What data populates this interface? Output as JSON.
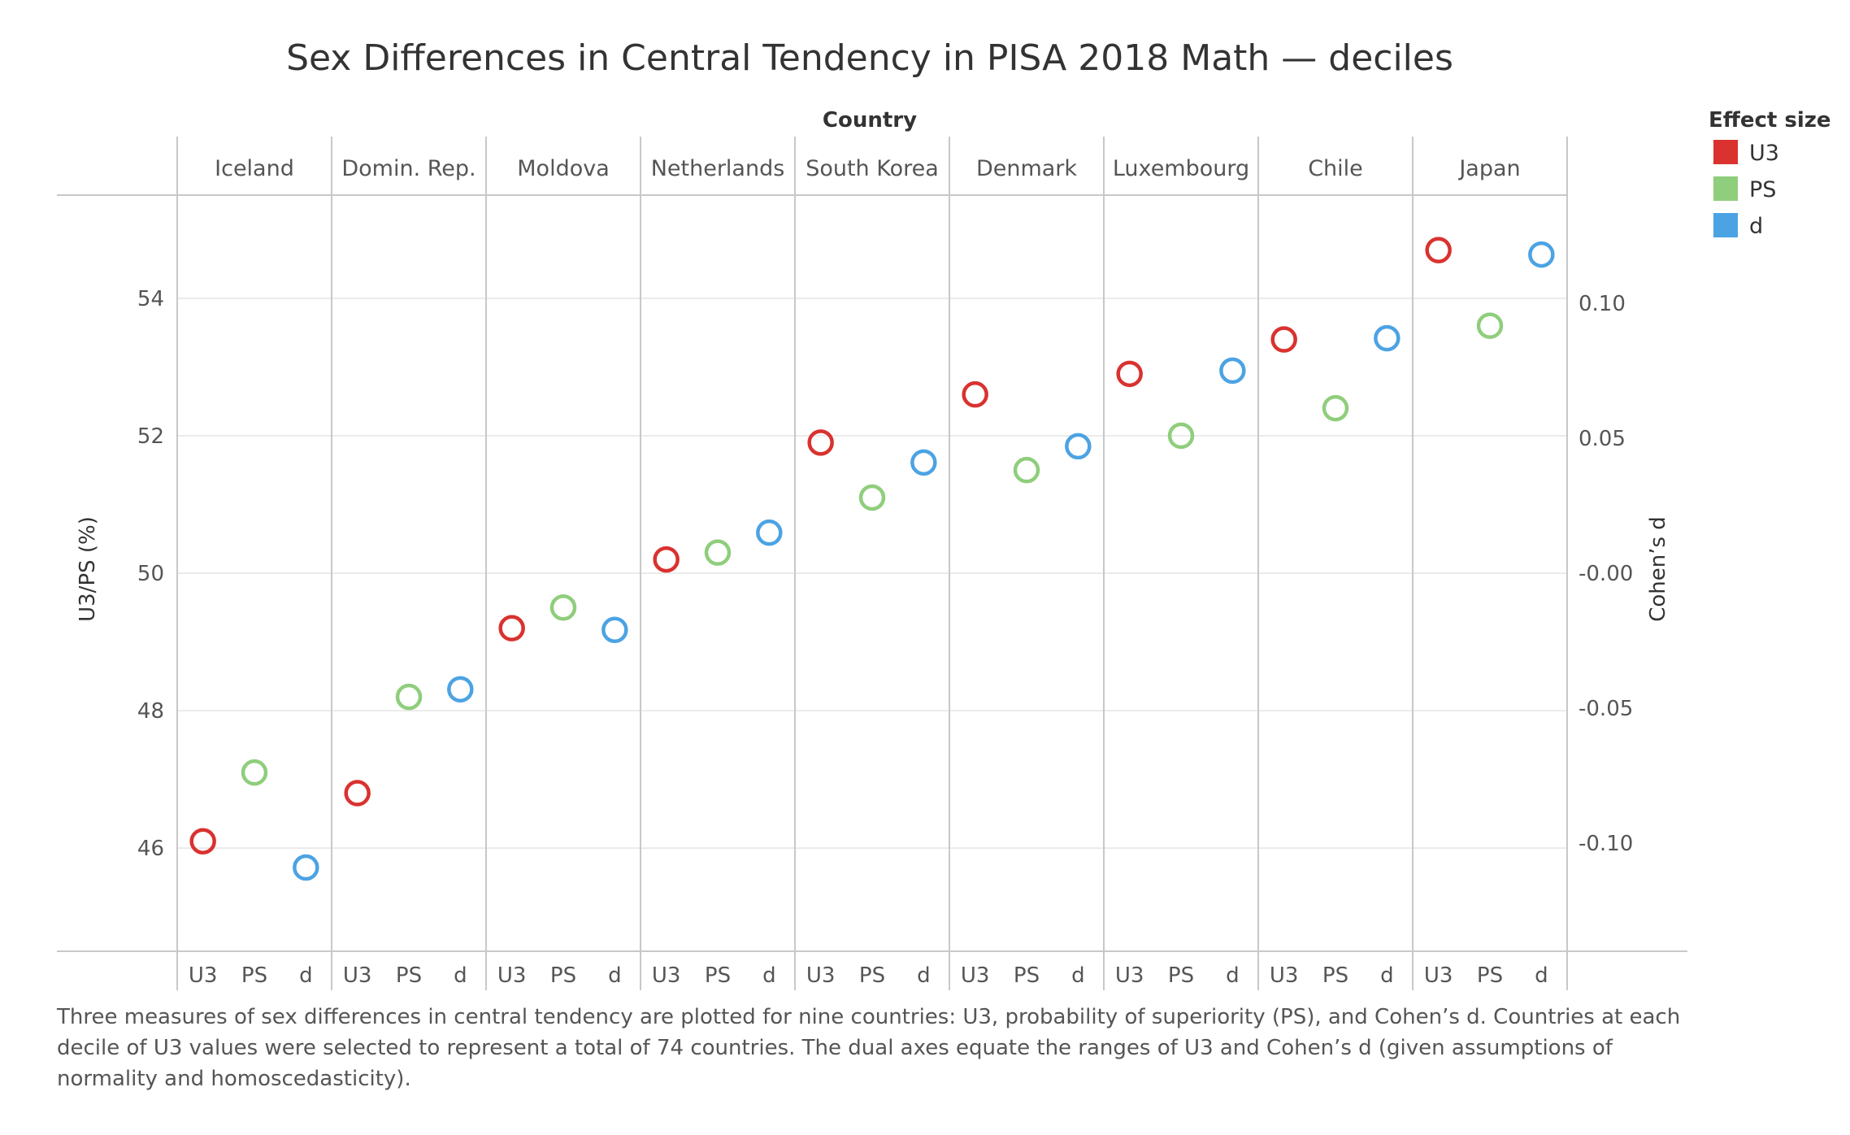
{
  "chart_data": {
    "type": "scatter",
    "title": "Sex Differences in Central Tendency in PISA 2018 Math — deciles",
    "column_header": "Country",
    "countries": [
      "Iceland",
      "Domin. Rep.",
      "Moldova",
      "Netherlands",
      "South Korea",
      "Denmark",
      "Luxembourg",
      "Chile",
      "Japan"
    ],
    "measures": [
      "U3",
      "PS",
      "d"
    ],
    "ylabel_left": "U3/PS (%)",
    "ylabel_right": "Cohen’s d",
    "ylim_left": [
      44.5,
      55.5
    ],
    "ylim_right": [
      -0.14,
      0.14
    ],
    "yticks_left": [
      46,
      48,
      50,
      52,
      54
    ],
    "yticks_right": [
      -0.1,
      -0.05,
      0.0,
      0.05,
      0.1
    ],
    "yticklabels_right": [
      "-0.10",
      "-0.05",
      "-0.00",
      "0.05",
      "0.10"
    ],
    "grid": true,
    "legend_position": "top-right",
    "series": [
      {
        "name": "U3",
        "axis": "left",
        "color": "#d9322f",
        "values": [
          46.1,
          46.8,
          49.2,
          50.2,
          51.9,
          52.6,
          52.9,
          53.4,
          54.7
        ]
      },
      {
        "name": "PS",
        "axis": "left",
        "color": "#8fce7c",
        "values": [
          47.1,
          48.2,
          49.5,
          50.3,
          51.1,
          51.5,
          52.0,
          52.4,
          53.6
        ]
      },
      {
        "name": "d",
        "axis": "right",
        "color": "#4ca3e3",
        "values": [
          -0.109,
          -0.043,
          -0.021,
          0.015,
          0.041,
          0.047,
          0.075,
          0.087,
          0.118
        ]
      }
    ]
  },
  "legend": {
    "title": "Effect size",
    "items": [
      {
        "label": "U3",
        "color": "#d9322f"
      },
      {
        "label": "PS",
        "color": "#8fce7c"
      },
      {
        "label": "d",
        "color": "#4ca3e3"
      }
    ]
  },
  "caption": "Three measures of sex differences in central tendency are plotted for nine countries: U3, probability of superiority (PS), and Cohen’s d. Countries at each decile of U3 values were selected to represent a total of 74 countries. The dual axes equate the ranges of U3 and Cohen’s d (given assumptions of normality and homoscedasticity)."
}
